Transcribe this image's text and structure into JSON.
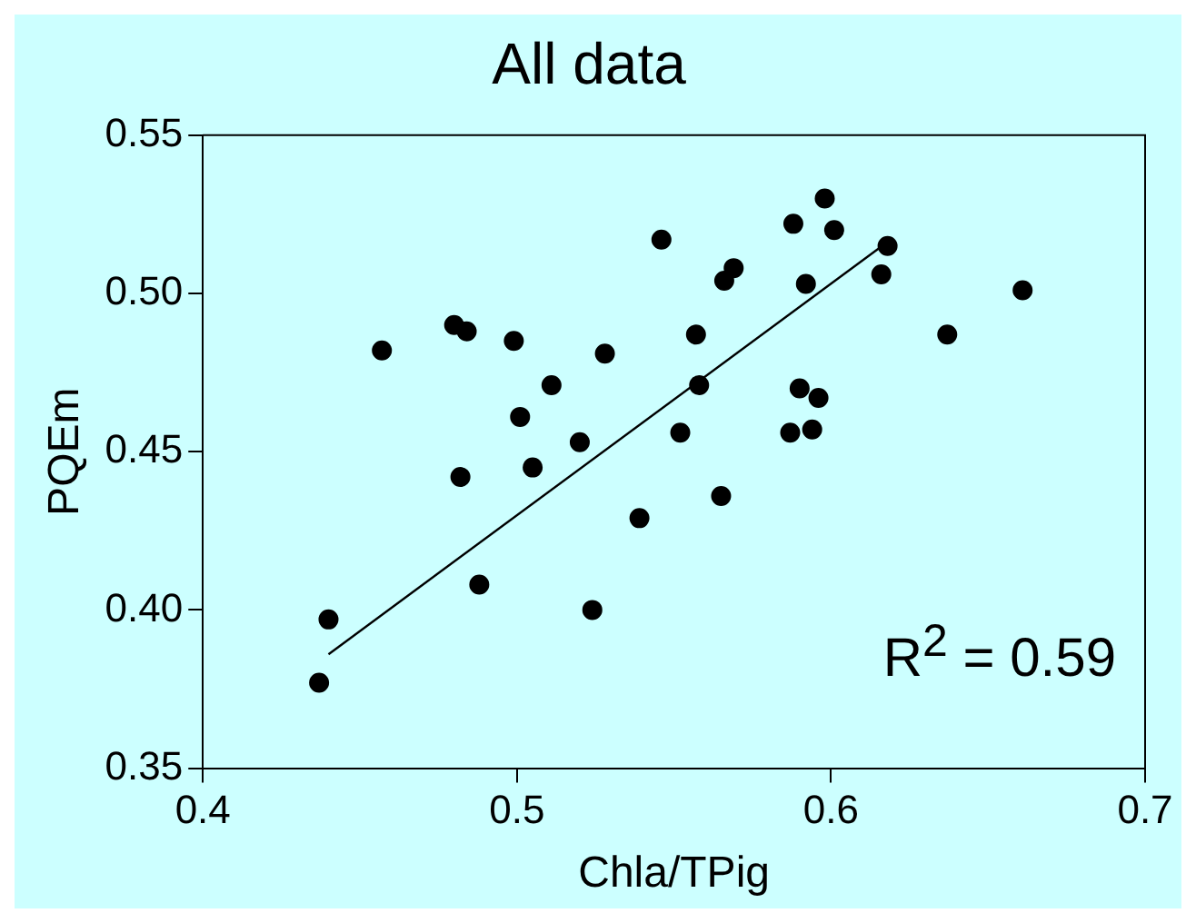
{
  "chart_data": {
    "type": "scatter",
    "title": "All data",
    "xlabel": "Chla/TPig",
    "ylabel": "PQEm",
    "xlim": [
      0.4,
      0.7
    ],
    "xticks": [
      0.4,
      0.5,
      0.6,
      0.7
    ],
    "ylim": [
      0.35,
      0.55
    ],
    "yticks": [
      {
        "value": 0.35,
        "label": "0.35"
      },
      {
        "value": 0.4,
        "label": "0.40"
      },
      {
        "value": 0.45,
        "label": "0.45"
      },
      {
        "value": 0.5,
        "label": "0.50"
      },
      {
        "value": 0.55,
        "label": "0.55"
      }
    ],
    "grid": false,
    "marker": "circle",
    "annotations": [
      "R$^{2}$ = 0.59"
    ],
    "series": [
      {
        "color": "#000000",
        "x": [
          0.437,
          0.44,
          0.457,
          0.48,
          0.484,
          0.482,
          0.488,
          0.499,
          0.501,
          0.505,
          0.511,
          0.52,
          0.524,
          0.528,
          0.539,
          0.546,
          0.552,
          0.557,
          0.558,
          0.565,
          0.566,
          0.569,
          0.588,
          0.592,
          0.59,
          0.596,
          0.587,
          0.594,
          0.598,
          0.601,
          0.616,
          0.618,
          0.637,
          0.661
        ],
        "values": [
          0.377,
          0.397,
          0.482,
          0.49,
          0.488,
          0.442,
          0.408,
          0.485,
          0.461,
          0.445,
          0.471,
          0.453,
          0.4,
          0.481,
          0.429,
          0.517,
          0.456,
          0.487,
          0.471,
          0.436,
          0.504,
          0.508,
          0.522,
          0.503,
          0.47,
          0.467,
          0.456,
          0.457,
          0.53,
          0.52,
          0.506,
          0.515,
          0.487,
          0.501
        ]
      },
      {
        "type": "line",
        "color": "#000000",
        "marker": "none",
        "x": [
          0.44,
          0.619
        ],
        "values": [
          0.386,
          0.517
        ]
      }
    ]
  }
}
